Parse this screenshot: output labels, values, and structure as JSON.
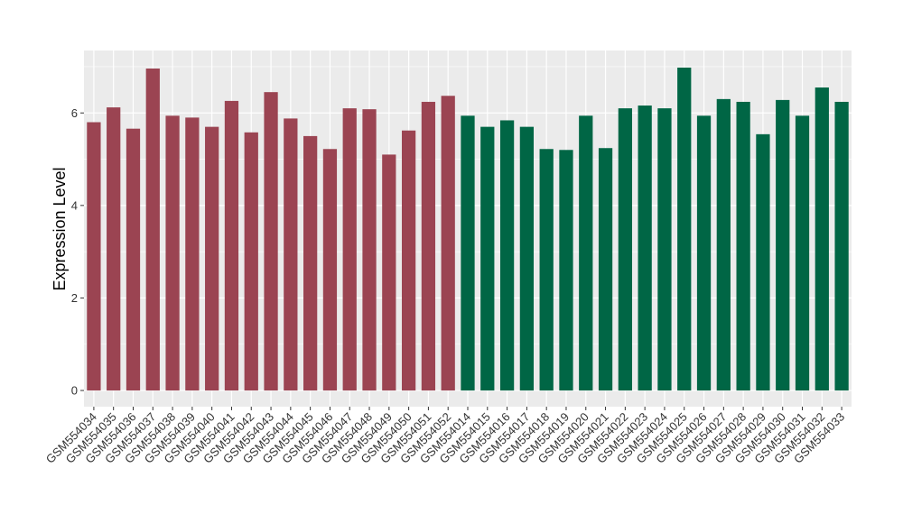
{
  "chart_data": {
    "type": "bar",
    "title": "",
    "xlabel": "",
    "ylabel": "Expression Level",
    "ylim": [
      -0.35,
      7.35
    ],
    "yticks": [
      0,
      2,
      4,
      6
    ],
    "grid": true,
    "legend": "none",
    "colors": {
      "panel": "#EBEBEB",
      "grid": "#FFFFFF",
      "group_a": "#9B4452",
      "group_b": "#006645"
    },
    "categories": [
      "GSM554034",
      "GSM554035",
      "GSM554036",
      "GSM554037",
      "GSM554038",
      "GSM554039",
      "GSM554040",
      "GSM554041",
      "GSM554042",
      "GSM554043",
      "GSM554044",
      "GSM554045",
      "GSM554046",
      "GSM554047",
      "GSM554048",
      "GSM554049",
      "GSM554050",
      "GSM554051",
      "GSM554052",
      "GSM554014",
      "GSM554015",
      "GSM554016",
      "GSM554017",
      "GSM554018",
      "GSM554019",
      "GSM554020",
      "GSM554021",
      "GSM554022",
      "GSM554023",
      "GSM554024",
      "GSM554025",
      "GSM554026",
      "GSM554027",
      "GSM554028",
      "GSM554029",
      "GSM554030",
      "GSM554031",
      "GSM554032",
      "GSM554033"
    ],
    "values": [
      5.8,
      6.12,
      5.66,
      6.96,
      5.94,
      5.9,
      5.7,
      6.26,
      5.58,
      6.45,
      5.88,
      5.5,
      5.22,
      6.1,
      6.08,
      5.1,
      5.62,
      6.24,
      6.37,
      5.94,
      5.7,
      5.84,
      5.7,
      5.22,
      5.2,
      5.94,
      5.24,
      6.1,
      6.16,
      6.1,
      6.98,
      5.94,
      6.3,
      6.24,
      5.54,
      6.28,
      5.94,
      6.55,
      6.24
    ],
    "groups": [
      "a",
      "a",
      "a",
      "a",
      "a",
      "a",
      "a",
      "a",
      "a",
      "a",
      "a",
      "a",
      "a",
      "a",
      "a",
      "a",
      "a",
      "a",
      "a",
      "b",
      "b",
      "b",
      "b",
      "b",
      "b",
      "b",
      "b",
      "b",
      "b",
      "b",
      "b",
      "b",
      "b",
      "b",
      "b",
      "b",
      "b",
      "b",
      "b"
    ]
  }
}
